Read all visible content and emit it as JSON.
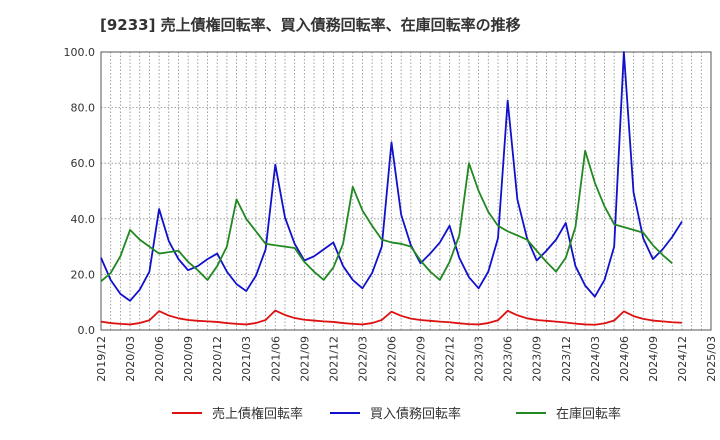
{
  "chart_data": {
    "type": "line",
    "title": "[9233]  売上債権回転率、買入債務回転率、在庫回転率の推移",
    "xlabel": "",
    "ylabel": "",
    "ylim": [
      0,
      100
    ],
    "yticks": [
      "0.0",
      "20.0",
      "40.0",
      "60.0",
      "80.0",
      "100.0"
    ],
    "xticks": [
      "2019/12",
      "2020/03",
      "2020/06",
      "2020/09",
      "2020/12",
      "2021/03",
      "2021/06",
      "2021/09",
      "2021/12",
      "2022/03",
      "2022/06",
      "2022/09",
      "2022/12",
      "2023/03",
      "2023/06",
      "2023/09",
      "2023/12",
      "2024/03",
      "2024/06",
      "2024/09",
      "2024/12",
      "2025/03"
    ],
    "x_start": "2019/12",
    "grid": true,
    "legend_position": "bottom",
    "series": [
      {
        "name": "売上債権回転率",
        "color": "#dd1111",
        "values": [
          3.0,
          2.5,
          2.2,
          2.0,
          2.5,
          3.5,
          6.8,
          5.2,
          4.2,
          3.6,
          3.3,
          3.1,
          2.9,
          2.5,
          2.2,
          2.0,
          2.5,
          3.6,
          7.0,
          5.4,
          4.3,
          3.7,
          3.4,
          3.1,
          2.9,
          2.5,
          2.2,
          2.0,
          2.5,
          3.6,
          6.6,
          5.1,
          4.1,
          3.6,
          3.3,
          3.0,
          2.8,
          2.4,
          2.1,
          2.0,
          2.5,
          3.5,
          6.9,
          5.3,
          4.2,
          3.6,
          3.3,
          3.0,
          2.7,
          2.3,
          2.0,
          1.9,
          2.4,
          3.4,
          6.7,
          5.0,
          4.0,
          3.4,
          3.1,
          2.8,
          2.6
        ]
      },
      {
        "name": "買入債務回転率",
        "color": "#1111cc",
        "values": [
          26.0,
          18.0,
          13.0,
          10.5,
          14.5,
          21.0,
          43.5,
          32.0,
          25.5,
          21.5,
          23.0,
          25.5,
          27.5,
          21.0,
          16.5,
          14.0,
          19.5,
          29.0,
          59.5,
          40.5,
          31.0,
          25.0,
          26.5,
          29.0,
          31.5,
          23.0,
          18.0,
          15.0,
          20.5,
          30.0,
          67.5,
          41.5,
          30.5,
          24.0,
          27.5,
          31.5,
          37.5,
          26.0,
          19.0,
          15.0,
          21.0,
          33.0,
          82.5,
          47.0,
          33.0,
          25.0,
          28.5,
          32.5,
          38.5,
          23.0,
          16.0,
          12.0,
          18.0,
          30.0,
          100.0,
          49.5,
          33.0,
          25.5,
          29.0,
          33.5,
          39.0
        ]
      },
      {
        "name": "在庫回転率",
        "color": "#228822",
        "values": [
          17.5,
          20.5,
          26.5,
          36.0,
          32.5,
          30.0,
          27.5,
          28.0,
          28.5,
          24.5,
          21.5,
          18.0,
          23.0,
          30.0,
          47.0,
          40.0,
          35.5,
          31.0,
          30.5,
          30.0,
          29.5,
          24.5,
          21.0,
          18.0,
          22.5,
          31.0,
          51.5,
          43.0,
          37.5,
          32.5,
          31.5,
          31.0,
          30.0,
          25.0,
          21.0,
          18.0,
          24.5,
          34.0,
          60.0,
          50.0,
          42.5,
          37.5,
          35.5,
          34.0,
          32.5,
          28.5,
          24.5,
          21.0,
          26.0,
          37.0,
          64.5,
          53.0,
          44.5,
          38.0,
          37.0,
          36.0,
          35.0,
          30.5,
          27.0,
          24.0
        ]
      }
    ]
  }
}
